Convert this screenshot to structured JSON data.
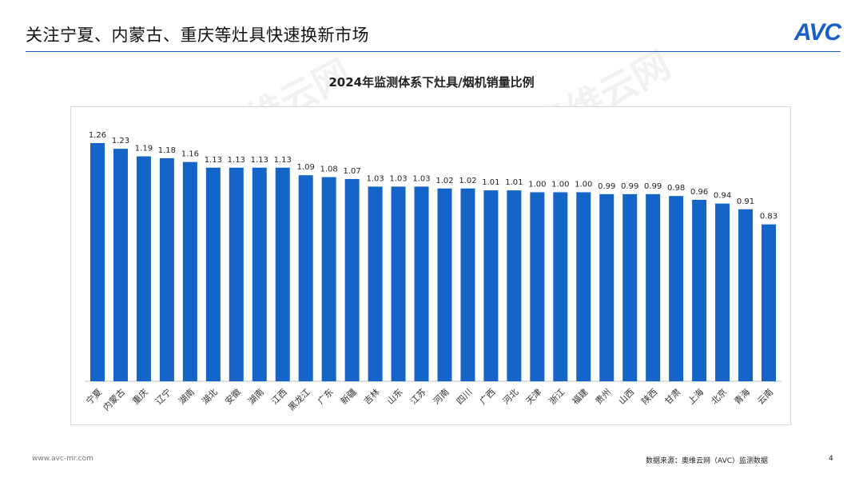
{
  "slide": {
    "title": "关注宁夏、内蒙古、重庆等灶具快速换新市场",
    "logo": "AVC",
    "footer_url": "www.avc-mr.com",
    "footer_source": "数据来源：奥维云网（AVC）监测数据",
    "page_number": "4"
  },
  "colors": {
    "bar": "#1565c8",
    "accent": "#1a5fc8"
  },
  "chart_data": {
    "type": "bar",
    "title": "2024年监测体系下灶具/烟机销量比例",
    "categories": [
      "宁夏",
      "内蒙古",
      "重庆",
      "辽宁",
      "湖南",
      "湖北",
      "安徽",
      "湖南",
      "江西",
      "黑龙江",
      "广东",
      "新疆",
      "吉林",
      "山东",
      "江苏",
      "河南",
      "四川",
      "广西",
      "河北",
      "天津",
      "浙江",
      "福建",
      "贵州",
      "山西",
      "陕西",
      "甘肃",
      "上海",
      "北京",
      "青海",
      "云南"
    ],
    "values": [
      1.26,
      1.23,
      1.19,
      1.18,
      1.16,
      1.13,
      1.13,
      1.13,
      1.13,
      1.09,
      1.08,
      1.07,
      1.03,
      1.03,
      1.03,
      1.02,
      1.02,
      1.01,
      1.01,
      1.0,
      1.0,
      1.0,
      0.99,
      0.99,
      0.99,
      0.98,
      0.96,
      0.94,
      0.91,
      0.83
    ],
    "labels": [
      "1.26",
      "1.23",
      "1.19",
      "1.18",
      "1.16",
      "1.13",
      "1.13",
      "1.13",
      "1.13",
      "1.09",
      "1.08",
      "1.07",
      "1.03",
      "1.03",
      "1.03",
      "1.02",
      "1.02",
      "1.01",
      "1.01",
      "1.00",
      "1.00",
      "1.00",
      "0.99",
      "0.99",
      "0.99",
      "0.98",
      "0.96",
      "0.94",
      "0.91",
      "0.83"
    ],
    "xlabel": "",
    "ylabel": "",
    "ylim": [
      0,
      1.26
    ],
    "grid": false,
    "legend": "none"
  }
}
